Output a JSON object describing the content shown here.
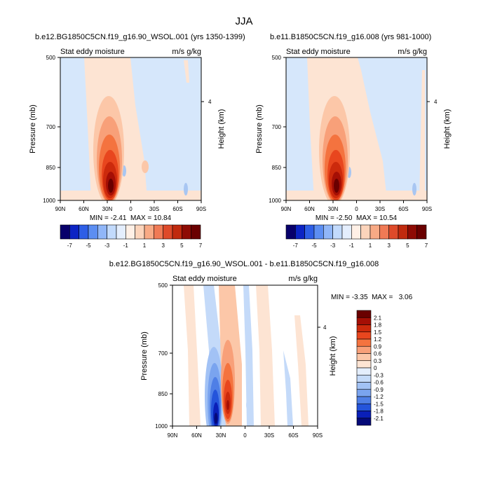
{
  "figure": {
    "title": "JJA"
  },
  "chart_data": [
    {
      "type": "heatmap",
      "panel": "top-left",
      "title": "b.e12.BG1850C5CN.f19_g16.90_WSOL.001 (yrs 1350-1399)",
      "left_label": "Stat eddy moisture",
      "right_label": "m/s g/kg",
      "xlabel": "",
      "ylabel": "Pressure (mb)",
      "right_axis_label": "Height (km)",
      "x_ticks": [
        "90N",
        "60N",
        "30N",
        "0",
        "30S",
        "60S",
        "90S"
      ],
      "y_ticks": [
        "500",
        "700",
        "850",
        "1000"
      ],
      "right_ticks": [
        "4"
      ],
      "min_max_text": "MIN = -2.41  MAX = 10.84",
      "min": -2.41,
      "max": 10.84
    },
    {
      "type": "heatmap",
      "panel": "top-right",
      "title": "b.e11.B1850C5CN.f19_g16.008 (yrs 981-1000)",
      "left_label": "Stat eddy moisture",
      "right_label": "m/s g/kg",
      "xlabel": "",
      "ylabel": "Pressure (mb)",
      "right_axis_label": "Height (km)",
      "x_ticks": [
        "90N",
        "60N",
        "30N",
        "0",
        "30S",
        "60S",
        "90S"
      ],
      "y_ticks": [
        "500",
        "700",
        "850",
        "1000"
      ],
      "right_ticks": [
        "4"
      ],
      "min_max_text": "MIN = -2.50  MAX = 10.54",
      "min": -2.5,
      "max": 10.54
    },
    {
      "type": "heatmap",
      "panel": "bottom-difference",
      "title": "b.e12.BG1850C5CN.f19_g16.90_WSOL.001 - b.e11.B1850C5CN.f19_g16.008",
      "left_label": "Stat eddy moisture",
      "right_label": "m/s g/kg",
      "xlabel": "",
      "ylabel": "Pressure (mb)",
      "right_axis_label": "Height (km)",
      "x_ticks": [
        "90N",
        "60N",
        "30N",
        "0",
        "30S",
        "60S",
        "90S"
      ],
      "y_ticks": [
        "500",
        "700",
        "850",
        "1000"
      ],
      "right_ticks": [
        "4"
      ],
      "min_max_text": "MIN = -3.35  MAX =   3.06",
      "min": -3.35,
      "max": 3.06
    }
  ],
  "colorbars": {
    "top": {
      "orientation": "horizontal",
      "colors": [
        "#08006b",
        "#0c24c4",
        "#2e5ee6",
        "#5c8ef2",
        "#90b6f8",
        "#c2dafc",
        "#e4eefd",
        "#fff0e6",
        "#fcd4bb",
        "#f8aa85",
        "#f07a55",
        "#de4a2a",
        "#c02a0e",
        "#8e0b04",
        "#6a0000"
      ],
      "labels": [
        "-7",
        "-5",
        "-3",
        "-1",
        "1",
        "3",
        "5",
        "7"
      ]
    },
    "difference": {
      "orientation": "vertical",
      "colors": [
        "#6a0000",
        "#a50f05",
        "#cc2a0c",
        "#e8461e",
        "#f4733f",
        "#f8a079",
        "#fcc7a8",
        "#fde4d3",
        "#e4eefd",
        "#c4daf9",
        "#a2c2f5",
        "#7aa4ef",
        "#4f7fe6",
        "#2454db",
        "#0a1fb8",
        "#050a78"
      ],
      "labels": [
        "2.1",
        "1.8",
        "1.5",
        "1.2",
        "0.9",
        "0.6",
        "0.3",
        "0",
        "-0.3",
        "-0.6",
        "-0.9",
        "-1.2",
        "-1.5",
        "-1.8",
        "-2.1"
      ]
    }
  }
}
